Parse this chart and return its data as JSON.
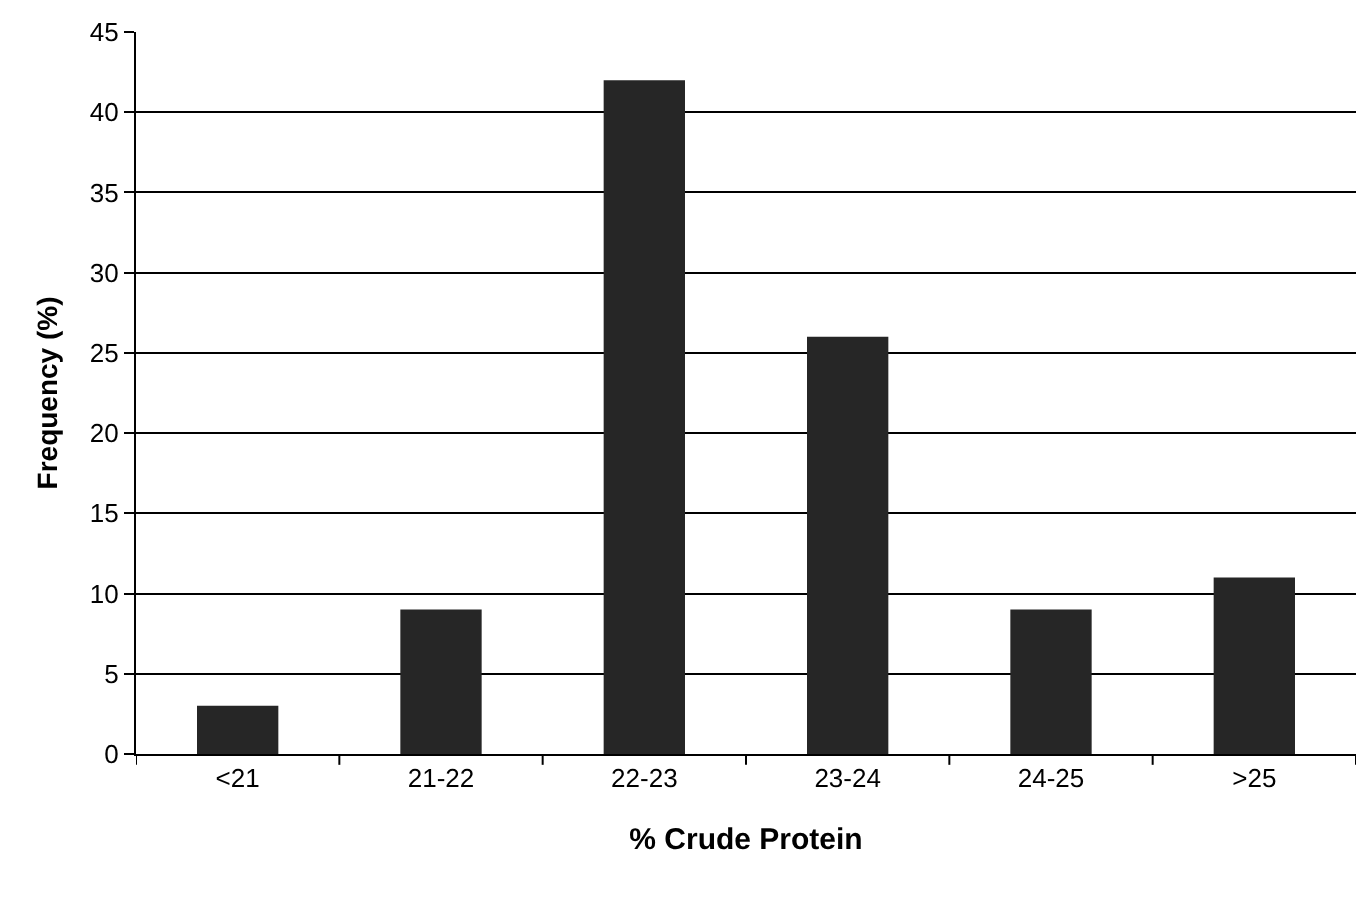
{
  "chart_data": {
    "type": "bar",
    "xlabel": "% Crude Protein",
    "ylabel": "Frequency (%)",
    "categories": [
      "<21",
      "21-22",
      "22-23",
      "23-24",
      "24-25",
      ">25"
    ],
    "values": [
      3,
      9,
      42,
      26,
      9,
      11
    ],
    "color": "#262626",
    "ylim": [
      0,
      45
    ],
    "yticks": [
      0,
      5,
      10,
      15,
      20,
      25,
      30,
      35,
      40,
      45
    ],
    "grid": "y"
  }
}
